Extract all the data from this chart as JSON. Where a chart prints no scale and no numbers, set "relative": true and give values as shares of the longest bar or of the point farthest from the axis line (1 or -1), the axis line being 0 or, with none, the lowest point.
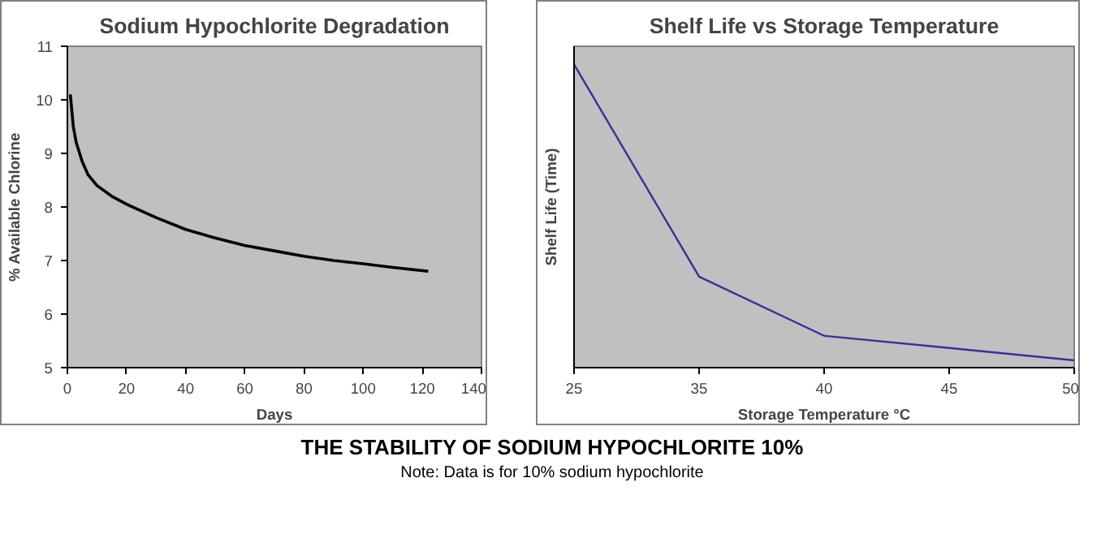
{
  "chart_data": [
    {
      "type": "line",
      "title": "Sodium Hypochlorite Degradation",
      "xlabel": "Days",
      "ylabel": "% Available Chlorine",
      "x": [
        1,
        2,
        3,
        5,
        7,
        10,
        15,
        20,
        30,
        40,
        50,
        60,
        70,
        80,
        90,
        100,
        110,
        122
      ],
      "series": [
        {
          "color": "#000000",
          "values": [
            10.1,
            9.5,
            9.2,
            8.85,
            8.6,
            8.4,
            8.2,
            8.05,
            7.8,
            7.58,
            7.42,
            7.28,
            7.18,
            7.08,
            7.0,
            6.94,
            6.87,
            6.8
          ]
        }
      ],
      "xlim": [
        0,
        140
      ],
      "xticks": [
        0,
        20,
        40,
        60,
        80,
        100,
        120,
        140
      ],
      "ylim": [
        5,
        11
      ],
      "yticks": [
        5,
        6,
        7,
        8,
        9,
        10,
        11
      ]
    },
    {
      "type": "line",
      "title": "Shelf Life vs Storage Temperature",
      "xlabel": "Storage Temperature °C",
      "ylabel": "Shelf Life (Time)",
      "categories": [
        "25",
        "35",
        "40",
        "45",
        "50"
      ],
      "relative": true,
      "series": [
        {
          "color": "#333399",
          "values": [
            1,
            0.3,
            0.105,
            0.065,
            0.024
          ]
        }
      ]
    },
    {
      "type": "other",
      "title": "THE STABILITY OF SODIUM HYPOCHLORITE 10%",
      "annotations": [
        "Note: Data is for 10% sodium hypochlorite"
      ]
    }
  ]
}
